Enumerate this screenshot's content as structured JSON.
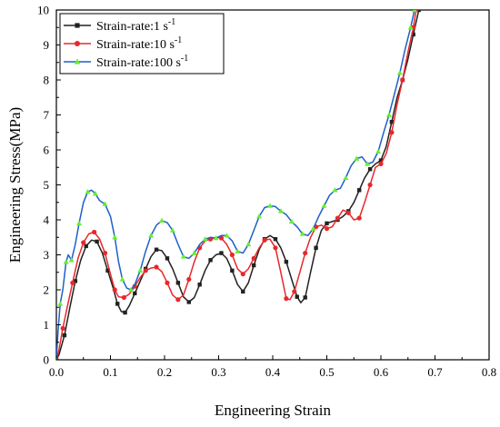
{
  "chart_data": {
    "type": "line",
    "xlabel": "Engineering Strain",
    "ylabel": "Engineering Stress(MPa)",
    "xlim": [
      0,
      0.8
    ],
    "ylim": [
      0,
      10
    ],
    "xticks": [
      "0.0",
      "0.1",
      "0.2",
      "0.3",
      "0.4",
      "0.5",
      "0.6",
      "0.7",
      "0.8"
    ],
    "yticks": [
      "0",
      "1",
      "2",
      "3",
      "4",
      "5",
      "6",
      "7",
      "8",
      "9",
      "10"
    ],
    "grid": false,
    "legend_position": "top-left",
    "series": [
      {
        "name": "Strain-rate:1 s",
        "name_sup": "-1",
        "color": "#222222",
        "marker": "square",
        "points": [
          [
            0,
            0
          ],
          [
            0.005,
            0.15
          ],
          [
            0.015,
            0.7
          ],
          [
            0.025,
            1.5
          ],
          [
            0.035,
            2.25
          ],
          [
            0.045,
            2.85
          ],
          [
            0.055,
            3.25
          ],
          [
            0.065,
            3.42
          ],
          [
            0.075,
            3.38
          ],
          [
            0.085,
            3.05
          ],
          [
            0.095,
            2.55
          ],
          [
            0.105,
            2.05
          ],
          [
            0.113,
            1.6
          ],
          [
            0.12,
            1.38
          ],
          [
            0.127,
            1.35
          ],
          [
            0.135,
            1.55
          ],
          [
            0.145,
            1.9
          ],
          [
            0.155,
            2.25
          ],
          [
            0.165,
            2.6
          ],
          [
            0.175,
            2.95
          ],
          [
            0.185,
            3.15
          ],
          [
            0.195,
            3.12
          ],
          [
            0.205,
            2.9
          ],
          [
            0.215,
            2.6
          ],
          [
            0.225,
            2.2
          ],
          [
            0.235,
            1.8
          ],
          [
            0.245,
            1.65
          ],
          [
            0.255,
            1.78
          ],
          [
            0.265,
            2.15
          ],
          [
            0.275,
            2.55
          ],
          [
            0.285,
            2.85
          ],
          [
            0.295,
            3.0
          ],
          [
            0.305,
            3.05
          ],
          [
            0.315,
            2.9
          ],
          [
            0.325,
            2.55
          ],
          [
            0.335,
            2.15
          ],
          [
            0.345,
            1.95
          ],
          [
            0.355,
            2.2
          ],
          [
            0.365,
            2.7
          ],
          [
            0.375,
            3.15
          ],
          [
            0.385,
            3.45
          ],
          [
            0.395,
            3.55
          ],
          [
            0.405,
            3.45
          ],
          [
            0.415,
            3.2
          ],
          [
            0.425,
            2.8
          ],
          [
            0.435,
            2.3
          ],
          [
            0.445,
            1.8
          ],
          [
            0.452,
            1.63
          ],
          [
            0.46,
            1.78
          ],
          [
            0.47,
            2.5
          ],
          [
            0.48,
            3.2
          ],
          [
            0.49,
            3.7
          ],
          [
            0.5,
            3.9
          ],
          [
            0.51,
            3.95
          ],
          [
            0.52,
            4.0
          ],
          [
            0.53,
            4.1
          ],
          [
            0.54,
            4.25
          ],
          [
            0.55,
            4.5
          ],
          [
            0.56,
            4.85
          ],
          [
            0.57,
            5.2
          ],
          [
            0.58,
            5.45
          ],
          [
            0.59,
            5.6
          ],
          [
            0.6,
            5.7
          ],
          [
            0.61,
            6.1
          ],
          [
            0.62,
            6.8
          ],
          [
            0.63,
            7.5
          ],
          [
            0.64,
            8.0
          ],
          [
            0.65,
            8.6
          ],
          [
            0.66,
            9.3
          ],
          [
            0.67,
            10.0
          ]
        ]
      },
      {
        "name": "Strain-rate:10 s",
        "name_sup": "-1",
        "color": "#e8282b",
        "marker": "circle",
        "points": [
          [
            0,
            0
          ],
          [
            0.005,
            0.3
          ],
          [
            0.012,
            0.9
          ],
          [
            0.02,
            1.5
          ],
          [
            0.03,
            2.2
          ],
          [
            0.04,
            2.9
          ],
          [
            0.05,
            3.35
          ],
          [
            0.06,
            3.6
          ],
          [
            0.07,
            3.65
          ],
          [
            0.08,
            3.45
          ],
          [
            0.09,
            3.05
          ],
          [
            0.1,
            2.45
          ],
          [
            0.108,
            2.0
          ],
          [
            0.115,
            1.8
          ],
          [
            0.125,
            1.78
          ],
          [
            0.135,
            1.88
          ],
          [
            0.145,
            2.1
          ],
          [
            0.155,
            2.35
          ],
          [
            0.165,
            2.55
          ],
          [
            0.175,
            2.62
          ],
          [
            0.185,
            2.65
          ],
          [
            0.195,
            2.52
          ],
          [
            0.205,
            2.2
          ],
          [
            0.215,
            1.85
          ],
          [
            0.225,
            1.72
          ],
          [
            0.235,
            1.85
          ],
          [
            0.245,
            2.3
          ],
          [
            0.255,
            2.8
          ],
          [
            0.265,
            3.2
          ],
          [
            0.275,
            3.4
          ],
          [
            0.285,
            3.45
          ],
          [
            0.295,
            3.5
          ],
          [
            0.305,
            3.48
          ],
          [
            0.315,
            3.3
          ],
          [
            0.325,
            3.0
          ],
          [
            0.335,
            2.6
          ],
          [
            0.345,
            2.45
          ],
          [
            0.355,
            2.6
          ],
          [
            0.365,
            2.9
          ],
          [
            0.375,
            3.2
          ],
          [
            0.385,
            3.42
          ],
          [
            0.395,
            3.45
          ],
          [
            0.405,
            3.2
          ],
          [
            0.415,
            2.5
          ],
          [
            0.425,
            1.75
          ],
          [
            0.432,
            1.72
          ],
          [
            0.44,
            1.95
          ],
          [
            0.45,
            2.5
          ],
          [
            0.46,
            3.05
          ],
          [
            0.47,
            3.5
          ],
          [
            0.48,
            3.8
          ],
          [
            0.49,
            3.85
          ],
          [
            0.5,
            3.75
          ],
          [
            0.51,
            3.8
          ],
          [
            0.52,
            4.05
          ],
          [
            0.53,
            4.28
          ],
          [
            0.54,
            4.2
          ],
          [
            0.55,
            4.0
          ],
          [
            0.56,
            4.05
          ],
          [
            0.57,
            4.5
          ],
          [
            0.58,
            5.0
          ],
          [
            0.59,
            5.5
          ],
          [
            0.6,
            5.6
          ],
          [
            0.61,
            5.9
          ],
          [
            0.62,
            6.5
          ],
          [
            0.63,
            7.3
          ],
          [
            0.64,
            8.0
          ],
          [
            0.65,
            8.8
          ],
          [
            0.66,
            9.5
          ],
          [
            0.665,
            10.0
          ]
        ]
      },
      {
        "name": "Strain-rate:100 s",
        "name_sup": "-1",
        "color": "#1f5fc8",
        "marker": "triangle",
        "marker_color": "#66ee33",
        "points": [
          [
            0,
            0
          ],
          [
            0.003,
            0.8
          ],
          [
            0.007,
            1.6
          ],
          [
            0.012,
            2.0
          ],
          [
            0.018,
            2.8
          ],
          [
            0.022,
            3.0
          ],
          [
            0.028,
            2.85
          ],
          [
            0.035,
            3.3
          ],
          [
            0.042,
            3.9
          ],
          [
            0.05,
            4.5
          ],
          [
            0.058,
            4.8
          ],
          [
            0.065,
            4.85
          ],
          [
            0.072,
            4.75
          ],
          [
            0.08,
            4.55
          ],
          [
            0.09,
            4.45
          ],
          [
            0.1,
            4.1
          ],
          [
            0.108,
            3.5
          ],
          [
            0.115,
            2.8
          ],
          [
            0.122,
            2.3
          ],
          [
            0.13,
            2.05
          ],
          [
            0.138,
            2.0
          ],
          [
            0.145,
            2.15
          ],
          [
            0.155,
            2.55
          ],
          [
            0.165,
            3.1
          ],
          [
            0.175,
            3.55
          ],
          [
            0.185,
            3.85
          ],
          [
            0.195,
            3.98
          ],
          [
            0.205,
            3.92
          ],
          [
            0.215,
            3.7
          ],
          [
            0.225,
            3.3
          ],
          [
            0.235,
            2.95
          ],
          [
            0.245,
            2.9
          ],
          [
            0.255,
            3.05
          ],
          [
            0.265,
            3.3
          ],
          [
            0.275,
            3.45
          ],
          [
            0.285,
            3.5
          ],
          [
            0.295,
            3.48
          ],
          [
            0.305,
            3.55
          ],
          [
            0.315,
            3.55
          ],
          [
            0.325,
            3.4
          ],
          [
            0.335,
            3.1
          ],
          [
            0.345,
            3.05
          ],
          [
            0.355,
            3.3
          ],
          [
            0.365,
            3.7
          ],
          [
            0.375,
            4.1
          ],
          [
            0.385,
            4.35
          ],
          [
            0.395,
            4.4
          ],
          [
            0.405,
            4.38
          ],
          [
            0.415,
            4.25
          ],
          [
            0.425,
            4.15
          ],
          [
            0.435,
            3.95
          ],
          [
            0.445,
            3.8
          ],
          [
            0.455,
            3.6
          ],
          [
            0.465,
            3.55
          ],
          [
            0.475,
            3.75
          ],
          [
            0.485,
            4.1
          ],
          [
            0.495,
            4.4
          ],
          [
            0.505,
            4.7
          ],
          [
            0.515,
            4.85
          ],
          [
            0.525,
            4.9
          ],
          [
            0.535,
            5.2
          ],
          [
            0.545,
            5.55
          ],
          [
            0.555,
            5.75
          ],
          [
            0.565,
            5.8
          ],
          [
            0.575,
            5.6
          ],
          [
            0.585,
            5.65
          ],
          [
            0.595,
            5.95
          ],
          [
            0.605,
            6.5
          ],
          [
            0.615,
            7.0
          ],
          [
            0.625,
            7.6
          ],
          [
            0.635,
            8.2
          ],
          [
            0.645,
            8.9
          ],
          [
            0.655,
            9.5
          ],
          [
            0.662,
            10.0
          ]
        ]
      }
    ]
  }
}
